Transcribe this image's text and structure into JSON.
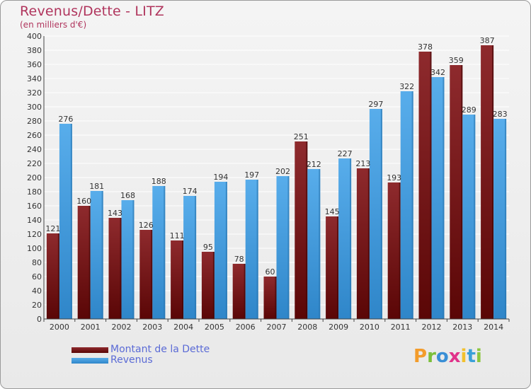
{
  "header": {
    "title": "Revenus/Dette - LITZ",
    "subtitle": "(en milliers d'€)"
  },
  "legend": {
    "items": [
      {
        "label": "Montant de la Dette",
        "color": "#7a1416"
      },
      {
        "label": "Revenus",
        "color": "#4aa3e6"
      }
    ]
  },
  "logo": {
    "letters": [
      "P",
      "r",
      "o",
      "x",
      "i",
      "t",
      "i"
    ],
    "colors": [
      "#f39c2b",
      "#7bbf3a",
      "#3a8fd6",
      "#e0338a",
      "#f2c12e",
      "#3aa0d8",
      "#8cc63f"
    ]
  },
  "chart_data": {
    "type": "bar",
    "categories": [
      "2000",
      "2001",
      "2002",
      "2003",
      "2004",
      "2005",
      "2006",
      "2007",
      "2008",
      "2009",
      "2010",
      "2011",
      "2012",
      "2013",
      "2014"
    ],
    "series": [
      {
        "name": "Montant de la Dette",
        "values": [
          121,
          160,
          143,
          126,
          111,
          95,
          78,
          60,
          251,
          145,
          213,
          193,
          378,
          359,
          387
        ]
      },
      {
        "name": "Revenus",
        "values": [
          276,
          181,
          168,
          188,
          174,
          194,
          197,
          202,
          212,
          227,
          297,
          322,
          342,
          289,
          283
        ]
      }
    ],
    "ylim": [
      0,
      400
    ],
    "yticks": [
      0,
      20,
      40,
      60,
      80,
      100,
      120,
      140,
      160,
      180,
      200,
      220,
      240,
      260,
      280,
      300,
      320,
      340,
      360,
      380,
      400
    ],
    "grid": true
  }
}
